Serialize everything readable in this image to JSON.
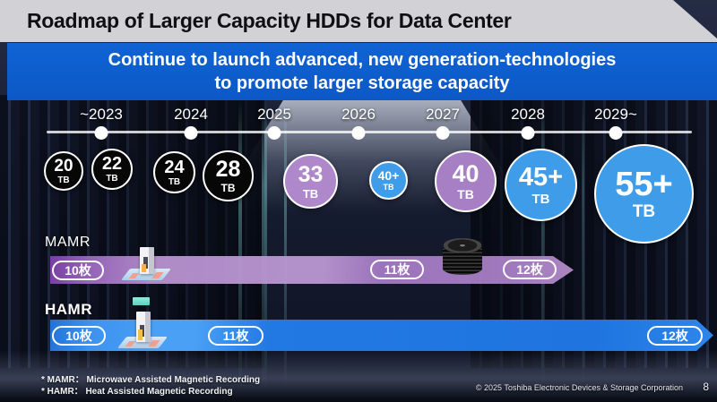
{
  "slide": {
    "title": "Roadmap of Larger Capacity HDDs for Data Center"
  },
  "banner": {
    "line1": "Continue to launch advanced, new generation-technologies",
    "line2": "to promote larger storage capacity"
  },
  "timeline": {
    "years": [
      {
        "label": "~2023"
      },
      {
        "label": "2024"
      },
      {
        "label": "2025"
      },
      {
        "label": "2026"
      },
      {
        "label": "2027"
      },
      {
        "label": "2028"
      },
      {
        "label": "2029~"
      }
    ]
  },
  "capacities": [
    {
      "value": "20",
      "unit": "TB",
      "color": "#070708"
    },
    {
      "value": "22",
      "unit": "TB",
      "color": "#070708"
    },
    {
      "value": "24",
      "unit": "TB",
      "color": "#070708"
    },
    {
      "value": "28",
      "unit": "TB",
      "color": "#070708"
    },
    {
      "value": "33",
      "unit": "TB",
      "color": "#ae88ca"
    },
    {
      "value": "40+",
      "unit": "TB",
      "color": "#3f9ce9"
    },
    {
      "value": "40",
      "unit": "TB",
      "color": "#a77fc5"
    },
    {
      "value": "45+",
      "unit": "TB",
      "color": "#3f9ce9"
    },
    {
      "value": "55+",
      "unit": "TB",
      "color": "#3f9ce9"
    }
  ],
  "mamr": {
    "label": "MAMR",
    "band_color": "#a87fc6",
    "platters": [
      {
        "label": "10枚"
      },
      {
        "label": "11枚"
      },
      {
        "label": "12枚"
      }
    ]
  },
  "hamr": {
    "label": "HAMR",
    "band_color": "#2a7fe2",
    "platters": [
      {
        "label": "10枚"
      },
      {
        "label": "11枚"
      },
      {
        "label": "12枚"
      }
    ]
  },
  "footnotes": [
    {
      "text": "* MAMR：  Microwave Assisted Magnetic Recording"
    },
    {
      "text": "* HAMR：  Heat Assisted Magnetic Recording"
    }
  ],
  "footer": {
    "copyright": "© 2025 Toshiba Electronic Devices & Storage Corporation",
    "page_number": "8"
  },
  "colors": {
    "banner_blue": "#0e5ecf",
    "title_band_gray": "#d2d2d6",
    "circle_black": "#070708",
    "circle_blue": "#3f9ce9",
    "circle_purple_33": "#ae88ca",
    "circle_purple_40": "#a77fc5",
    "mamr_band_purple": "#a87fc6",
    "hamr_band_blue": "#2a7fe2"
  }
}
